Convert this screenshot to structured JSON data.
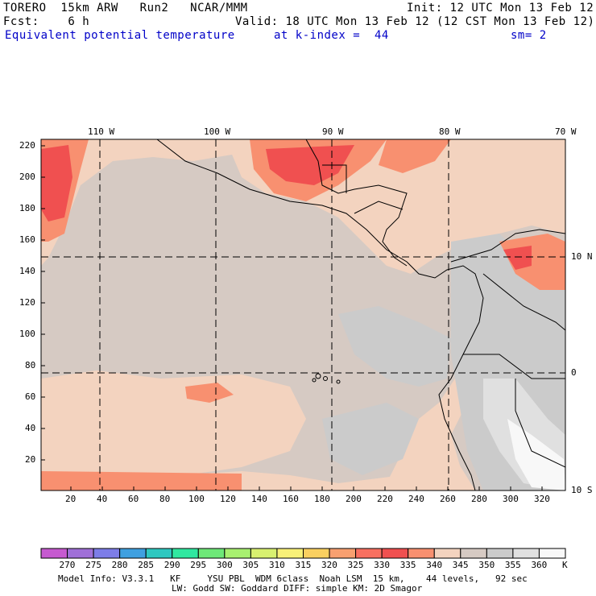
{
  "header": {
    "model": "TORERO  15km ARW   Run2   NCAR/MMM",
    "init": "Init: 12 UTC Mon 13 Feb 12",
    "fcst": "Fcst:    6 h",
    "valid": "Valid: 18 UTC Mon 13 Feb 12 (12 CST Mon 13 Feb 12)",
    "field": "Equivalent potential temperature",
    "level": "at k-index =  44",
    "smooth": "sm= 2"
  },
  "map": {
    "lon_labels": [
      "110 W",
      "100 W",
      "90 W",
      "80 W",
      "70 W"
    ],
    "lat_labels": [
      "10 N",
      "0",
      "10 S"
    ],
    "y_ticks": [
      "220",
      "200",
      "180",
      "160",
      "140",
      "120",
      "100",
      "80",
      "60",
      "40",
      "20"
    ],
    "x_ticks": [
      "20",
      "40",
      "60",
      "80",
      "100",
      "120",
      "140",
      "160",
      "180",
      "200",
      "220",
      "240",
      "260",
      "280",
      "300",
      "320"
    ],
    "background_color": "#d6cac3"
  },
  "colorbar": {
    "labels": [
      "270",
      "275",
      "280",
      "285",
      "290",
      "295",
      "300",
      "305",
      "310",
      "315",
      "320",
      "325",
      "330",
      "335",
      "340",
      "345",
      "350",
      "355",
      "360"
    ],
    "unit": "K",
    "colors": [
      "#c65ad0",
      "#a070d8",
      "#7d7de8",
      "#3fa0e0",
      "#2ec8c0",
      "#30e8a0",
      "#6ee878",
      "#a8f070",
      "#d8f070",
      "#f8f078",
      "#fad060",
      "#f8a070",
      "#f87060",
      "#f05050",
      "#f89070",
      "#f3d3bf",
      "#d6cac3",
      "#cbcbcb",
      "#e0e0e0",
      "#f8f8f8"
    ]
  },
  "footer": {
    "line1": "Model Info: V3.3.1   KF     YSU PBL  WDM 6class  Noah LSM  15 km,    44 levels,   92 sec",
    "line2": "LW: Godd SW: Goddard DIFF: simple KM: 2D Smagor"
  }
}
